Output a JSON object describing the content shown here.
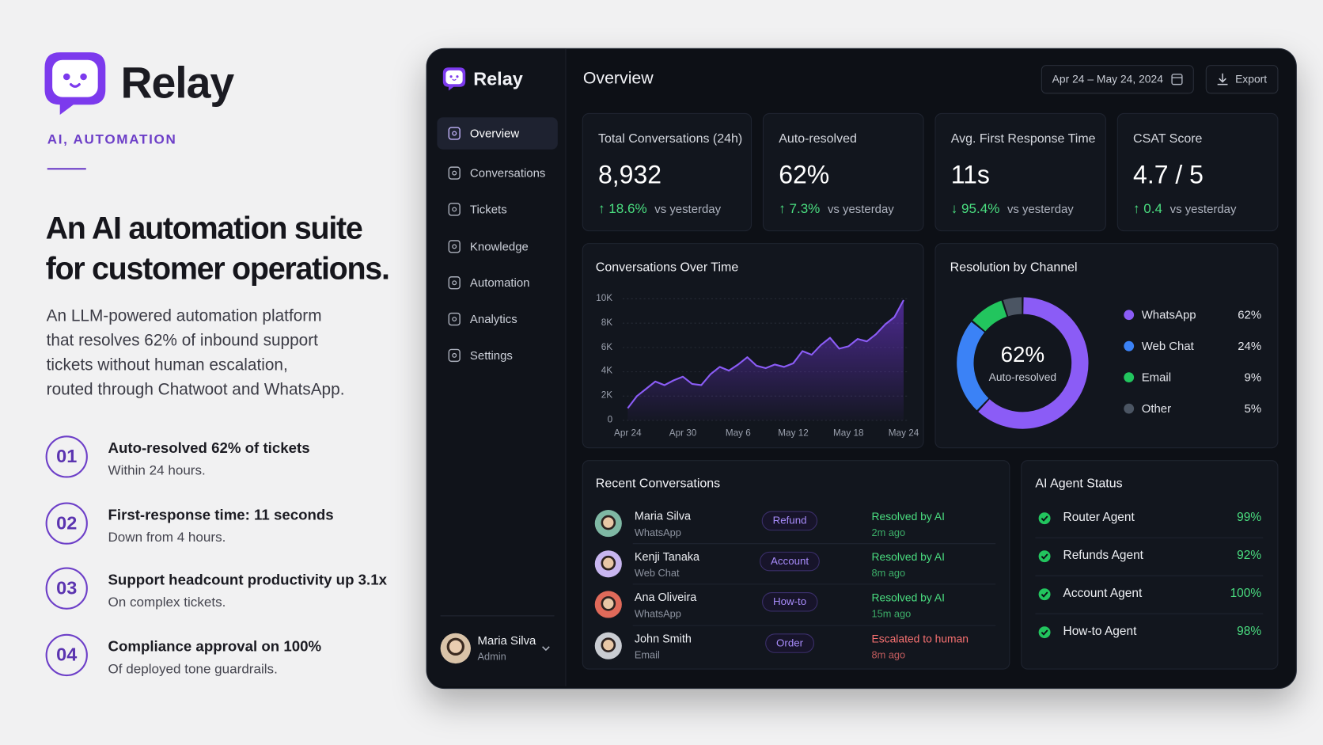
{
  "brand": {
    "name": "Relay",
    "tag": "AI, AUTOMATION"
  },
  "headline": [
    "An AI automation suite",
    "for customer operations."
  ],
  "description": [
    "An LLM-powered automation platform",
    "that resolves 62% of inbound support",
    "tickets without human escalation,",
    "routed through Chatwoot and WhatsApp."
  ],
  "highlights": [
    {
      "number": "01",
      "title": "Auto-resolved 62% of tickets",
      "subtitle": "Within 24 hours."
    },
    {
      "number": "02",
      "title": "First-response time: 11 seconds",
      "subtitle": "Down from 4 hours."
    },
    {
      "number": "03",
      "title": "Support headcount productivity up 3.1x",
      "subtitle": "On complex tickets."
    },
    {
      "number": "04",
      "title": "Compliance approval on 100%",
      "subtitle": "Of deployed tone guardrails."
    }
  ],
  "dashboard": {
    "brand": "Relay",
    "nav": [
      "Overview",
      "Conversations",
      "Tickets",
      "Knowledge",
      "Automation",
      "Analytics",
      "Settings"
    ],
    "user": {
      "name": "Maria Silva",
      "role": "Admin"
    },
    "page_title": "Overview",
    "date_range": "Apr 24 – May 24, 2024",
    "export": "Export",
    "kpis": [
      {
        "label": "Total Conversations (24h)",
        "value": "8,932",
        "delta": "↑ 18.6%",
        "comparison": "vs yesterday"
      },
      {
        "label": "Auto-resolved",
        "value": "62%",
        "delta": "↑ 7.3%",
        "comparison": "vs yesterday"
      },
      {
        "label": "Avg. First Response Time",
        "value": "11s",
        "delta": "↓ 95.4%",
        "comparison": "vs yesterday"
      },
      {
        "label": "CSAT Score",
        "value": "4.7 / 5",
        "delta": "↑ 0.4",
        "comparison": "vs yesterday"
      }
    ],
    "recent": {
      "title": "Recent Conversations",
      "rows": [
        {
          "name": "Maria Silva",
          "channel": "WhatsApp",
          "tag": "Refund",
          "status": "Resolved by AI",
          "time": "2m ago",
          "status_color": "#4ade80"
        },
        {
          "name": "Kenji Tanaka",
          "channel": "Web Chat",
          "tag": "Account",
          "status": "Resolved by AI",
          "time": "8m ago",
          "status_color": "#4ade80"
        },
        {
          "name": "Ana Oliveira",
          "channel": "WhatsApp",
          "tag": "How-to",
          "status": "Resolved by AI",
          "time": "15m ago",
          "status_color": "#4ade80"
        },
        {
          "name": "John Smith",
          "channel": "Email",
          "tag": "Order",
          "status": "Escalated to human",
          "time": "8m ago",
          "status_color": "#f87171"
        }
      ]
    },
    "agents": {
      "title": "AI Agent Status",
      "rows": [
        {
          "name": "Router Agent",
          "value": "99%"
        },
        {
          "name": "Refunds Agent",
          "value": "92%"
        },
        {
          "name": "Account Agent",
          "value": "100%"
        },
        {
          "name": "How-to Agent",
          "value": "98%"
        }
      ]
    }
  },
  "chart_data": [
    {
      "type": "line",
      "title": "Conversations Over Time",
      "categories": [
        "Apr 24",
        null,
        null,
        null,
        null,
        null,
        "Apr 30",
        null,
        null,
        null,
        null,
        null,
        "May 6",
        null,
        null,
        null,
        null,
        null,
        "May 12",
        null,
        null,
        null,
        null,
        null,
        "May 18",
        null,
        null,
        null,
        null,
        null,
        "May 24"
      ],
      "values": [
        1000,
        2000,
        2600,
        3200,
        2900,
        3300,
        3600,
        3000,
        2900,
        3800,
        4400,
        4100,
        4600,
        5200,
        4500,
        4300,
        4600,
        4400,
        4700,
        5700,
        5400,
        6200,
        6800,
        5900,
        6100,
        6700,
        6500,
        7100,
        7900,
        8500,
        9900
      ],
      "color": "#8b5cf6",
      "ylim": [
        0,
        10000
      ],
      "yticks": [
        0,
        {
          "value": 2000,
          "label": "2K"
        },
        {
          "value": 4000,
          "label": "4K"
        },
        {
          "value": 6000,
          "label": "6K"
        },
        {
          "value": 8000,
          "label": "8K"
        },
        {
          "value": 10000,
          "label": "10K"
        }
      ],
      "grid": true
    },
    {
      "type": "pie",
      "title": "Resolution by Channel",
      "categories": [
        "WhatsApp",
        "Web Chat",
        "Email",
        "Other"
      ],
      "values": [
        62,
        24,
        9,
        5
      ],
      "value_labels": [
        "62%",
        "24%",
        "9%",
        "5%"
      ],
      "colors": [
        "#8b5cf6",
        "#3b82f6",
        "#22c55e",
        "#4b5563"
      ],
      "center_label": "62%",
      "center_sublabel": "Auto-resolved"
    }
  ]
}
